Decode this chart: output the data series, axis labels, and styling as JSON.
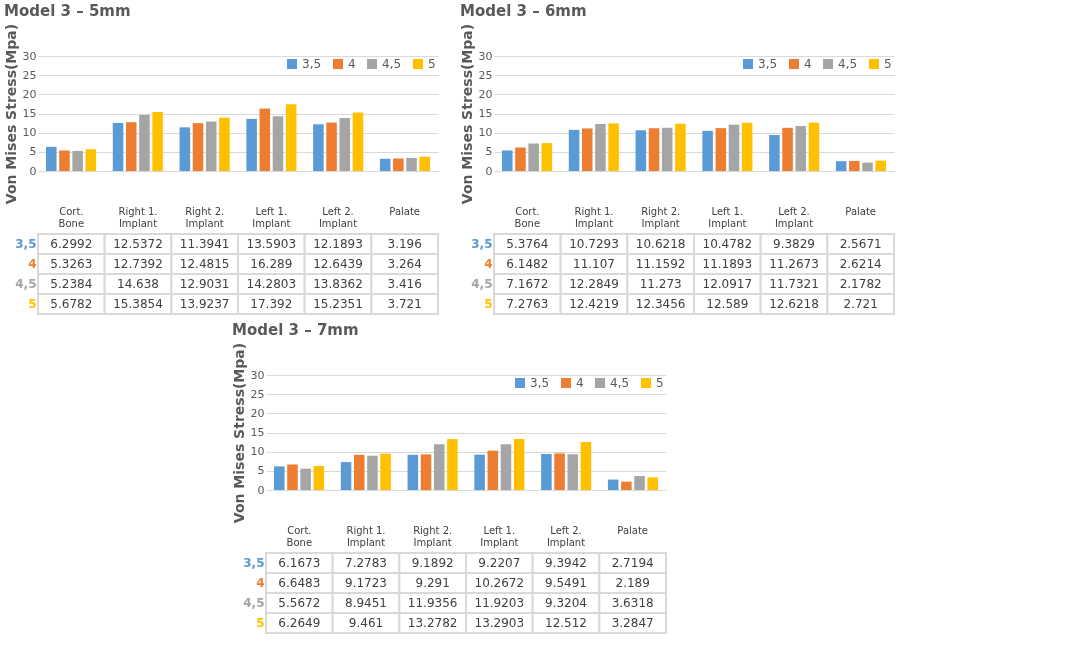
{
  "chart_data": [
    {
      "type": "bar",
      "title": "Model 3 – 5mm",
      "ylabel": "Von Mises Stress(Mpa)",
      "categories": [
        "Cort. Bone",
        "Right 1. Implant",
        "Right 2. Implant",
        "Left 1. Implant",
        "Left 2. Implant",
        "Palate"
      ],
      "ylim": [
        0,
        30
      ],
      "yticks": [
        0,
        5,
        10,
        15,
        20,
        25,
        30
      ],
      "grid": "y",
      "legend": "top right",
      "data_labels": true,
      "series": [
        {
          "name": "3,5",
          "color": "#5b9bd5",
          "values": [
            6.2992,
            12.5372,
            11.3941,
            13.5903,
            12.1893,
            3.196
          ]
        },
        {
          "name": "4",
          "color": "#ed7d31",
          "values": [
            5.3263,
            12.7392,
            12.4815,
            16.289,
            12.6439,
            3.264
          ]
        },
        {
          "name": "4,5",
          "color": "#a5a5a5",
          "values": [
            5.2384,
            14.638,
            12.9031,
            14.2803,
            13.8362,
            3.416
          ]
        },
        {
          "name": "5",
          "color": "#ffc000",
          "values": [
            5.6782,
            15.3854,
            13.9237,
            17.392,
            15.2351,
            3.721
          ]
        }
      ]
    },
    {
      "type": "bar",
      "title": "Model 3 – 6mm",
      "ylabel": "Von Mises Stress(Mpa)",
      "categories": [
        "Cort. Bone",
        "Right 1. Implant",
        "Right 2. Implant",
        "Left 1. Implant",
        "Left 2. Implant",
        "Palate"
      ],
      "ylim": [
        0,
        30
      ],
      "yticks": [
        0,
        5,
        10,
        15,
        20,
        25,
        30
      ],
      "grid": "y",
      "legend": "top right",
      "data_labels": true,
      "series": [
        {
          "name": "3,5",
          "color": "#5b9bd5",
          "values": [
            5.3764,
            10.7293,
            10.6218,
            10.4782,
            9.3829,
            2.5671
          ]
        },
        {
          "name": "4",
          "color": "#ed7d31",
          "values": [
            6.1482,
            11.107,
            11.1592,
            11.1893,
            11.2673,
            2.6214
          ]
        },
        {
          "name": "4,5",
          "color": "#a5a5a5",
          "values": [
            7.1672,
            12.2849,
            11.273,
            12.0917,
            11.7321,
            2.1782
          ]
        },
        {
          "name": "5",
          "color": "#ffc000",
          "values": [
            7.2763,
            12.4219,
            12.3456,
            12.589,
            12.6218,
            2.721
          ]
        }
      ]
    },
    {
      "type": "bar",
      "title": "Model 3 – 7mm",
      "ylabel": "Von Mises Stress(Mpa)",
      "categories": [
        "Cort. Bone",
        "Right 1. Implant",
        "Right 2. Implant",
        "Left 1. Implant",
        "Left 2. Implant",
        "Palate"
      ],
      "ylim": [
        0,
        30
      ],
      "yticks": [
        0,
        5,
        10,
        15,
        20,
        25,
        30
      ],
      "grid": "y",
      "legend": "top right",
      "data_labels": true,
      "series": [
        {
          "name": "3,5",
          "color": "#5b9bd5",
          "values": [
            6.1673,
            7.2783,
            9.1892,
            9.2207,
            9.3942,
            2.7194
          ]
        },
        {
          "name": "4",
          "color": "#ed7d31",
          "values": [
            6.6483,
            9.1723,
            9.291,
            10.2672,
            9.5491,
            2.189
          ]
        },
        {
          "name": "4,5",
          "color": "#a5a5a5",
          "values": [
            5.5672,
            8.9451,
            11.9356,
            11.9203,
            9.3204,
            3.6318
          ]
        },
        {
          "name": "5",
          "color": "#ffc000",
          "values": [
            6.2649,
            9.461,
            13.2782,
            13.2903,
            12.512,
            3.2847
          ]
        }
      ]
    }
  ]
}
